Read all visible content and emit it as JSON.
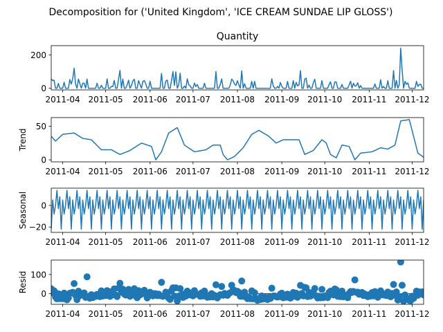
{
  "figure": {
    "suptitle": "Decomposition for ('United Kingdom', 'ICE CREAM SUNDAE LIP GLOSS')"
  },
  "colors": {
    "line": "#1f77b4",
    "axis": "#000000",
    "zero": "#000000"
  },
  "x_tick_labels": [
    "2011-04",
    "2011-05",
    "2011-06",
    "2011-07",
    "2011-08",
    "2011-09",
    "2011-10",
    "2011-11",
    "2011-12"
  ],
  "chart_data": [
    {
      "type": "line",
      "title": "Quantity",
      "ylabel": "",
      "xlim": [
        "2011-03-24",
        "2011-12-09"
      ],
      "ylim": [
        -10,
        255
      ],
      "yticks": [
        0,
        200
      ],
      "series": [
        {
          "values": []
        }
      ]
    },
    {
      "type": "line",
      "title": "",
      "ylabel": "Trend",
      "xlim": [
        "2011-03-24",
        "2011-12-09"
      ],
      "ylim": [
        -3,
        63
      ],
      "yticks": [
        0,
        50
      ],
      "series": [
        {
          "values": []
        }
      ]
    },
    {
      "type": "line",
      "title": "",
      "ylabel": "Seasonal",
      "xlim": [
        "2011-03-24",
        "2011-12-09"
      ],
      "ylim": [
        -25,
        16
      ],
      "yticks": [
        -20,
        0
      ],
      "series": [
        {
          "values": []
        }
      ]
    },
    {
      "type": "scatter",
      "title": "",
      "ylabel": "Resid",
      "xlim": [
        "2011-03-24",
        "2011-12-09"
      ],
      "ylim": [
        -55,
        175
      ],
      "yticks": [
        0,
        100
      ],
      "zero_line": true,
      "series": [
        {
          "values": []
        }
      ]
    }
  ]
}
